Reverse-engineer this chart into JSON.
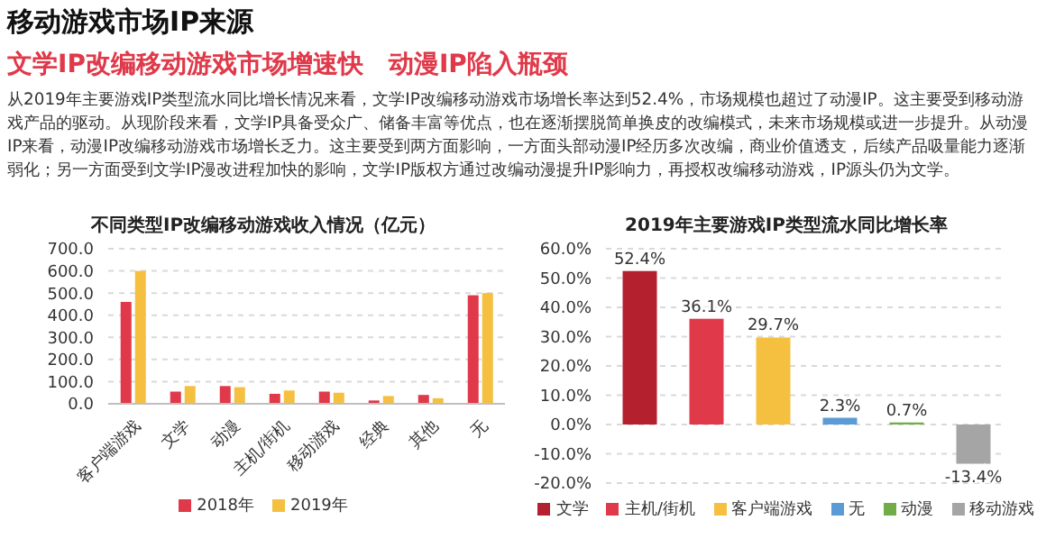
{
  "chart_data": [
    {
      "type": "other",
      "title": "移动游戏市场IP来源",
      "subtitle": "文学IP改编移动游戏市场增速快　动漫IP陷入瓶颈",
      "annotations": [
        "从2019年主要游戏IP类型流水同比增长情况来看，文学IP改编移动游戏市场增长率达到52.4%，市场规模也超过了动漫IP。这主要受到移动游戏产品的驱动。从现阶段来看，文学IP具备受众广、储备丰富等优点，也在逐渐摆脱简单换皮的改编模式，未来市场规模或进一步提升。从动漫IP来看，动漫IP改编移动游戏市场增长乏力。这主要受到两方面影响，一方面头部动漫IP经历多次改编，商业价值透支，后续产品吸量能力逐渐弱化；另一方面受到文学IP漫改进程加快的影响，文学IP版权方通过改编动漫提升IP影响力，再授权改编移动游戏，IP源头仍为文学。"
      ]
    },
    {
      "type": "bar",
      "title": "不同类型IP改编移动游戏收入情况（亿元）",
      "categories": [
        "客户端游戏",
        "文学",
        "动漫",
        "主机/街机",
        "移动游戏",
        "经典",
        "其他",
        "无"
      ],
      "series": [
        {
          "name": "2018年",
          "color": "#e0394a",
          "values": [
            460,
            55,
            80,
            45,
            55,
            15,
            40,
            490
          ]
        },
        {
          "name": "2019年",
          "color": "#f5c040",
          "values": [
            600,
            80,
            75,
            60,
            50,
            35,
            25,
            500
          ]
        }
      ],
      "ylim": [
        0,
        700
      ],
      "yticks": [
        {
          "value": 0,
          "label": "0.0"
        },
        {
          "value": 100,
          "label": "100.0"
        },
        {
          "value": 200,
          "label": "200.0"
        },
        {
          "value": 300,
          "label": "300.0"
        },
        {
          "value": 400,
          "label": "400.0"
        },
        {
          "value": 500,
          "label": "500.0"
        },
        {
          "value": 600,
          "label": "600.0"
        },
        {
          "value": 700,
          "label": "700.0"
        }
      ],
      "grid": "y",
      "legend": "bottom"
    },
    {
      "type": "bar",
      "title": "2019年主要游戏IP类型流水同比增长率",
      "categories": [
        null,
        null,
        null,
        null,
        null,
        null
      ],
      "stacked": true,
      "series": [
        {
          "name": "文学",
          "color": "#b5202e",
          "values": [
            52.4,
            null,
            null,
            null,
            null,
            null
          ],
          "value_labels": [
            "52.4%",
            null,
            null,
            null,
            null,
            null
          ]
        },
        {
          "name": "主机/街机",
          "color": "#e0394a",
          "values": [
            null,
            36.1,
            null,
            null,
            null,
            null
          ],
          "value_labels": [
            null,
            "36.1%",
            null,
            null,
            null,
            null
          ]
        },
        {
          "name": "客户端游戏",
          "color": "#f5c040",
          "values": [
            null,
            null,
            29.7,
            null,
            null,
            null
          ],
          "value_labels": [
            null,
            null,
            "29.7%",
            null,
            null,
            null
          ]
        },
        {
          "name": "无",
          "color": "#5b9bd5",
          "values": [
            null,
            null,
            null,
            2.3,
            null,
            null
          ],
          "value_labels": [
            null,
            null,
            null,
            "2.3%",
            null,
            null
          ]
        },
        {
          "name": "动漫",
          "color": "#70ad47",
          "values": [
            null,
            null,
            null,
            null,
            0.7,
            null
          ],
          "value_labels": [
            null,
            null,
            null,
            null,
            "0.7%",
            null
          ]
        },
        {
          "name": "移动游戏",
          "color": "#a5a5a5",
          "values": [
            null,
            null,
            null,
            null,
            null,
            -13.4
          ],
          "value_labels": [
            null,
            null,
            null,
            null,
            null,
            "-13.4%"
          ]
        }
      ],
      "ylim": [
        -20,
        60
      ],
      "yticks": [
        {
          "value": -20,
          "label": "-20.0%"
        },
        {
          "value": -10,
          "label": "-10.0%"
        },
        {
          "value": 0,
          "label": "0.0%"
        },
        {
          "value": 10,
          "label": "10.0%"
        },
        {
          "value": 20,
          "label": "20.0%"
        },
        {
          "value": 30,
          "label": "30.0%"
        },
        {
          "value": 40,
          "label": "40.0%"
        },
        {
          "value": 50,
          "label": "50.0%"
        },
        {
          "value": 60,
          "label": "60.0%"
        }
      ],
      "grid": "y",
      "legend": "bottom",
      "tick_labels": "y"
    }
  ]
}
